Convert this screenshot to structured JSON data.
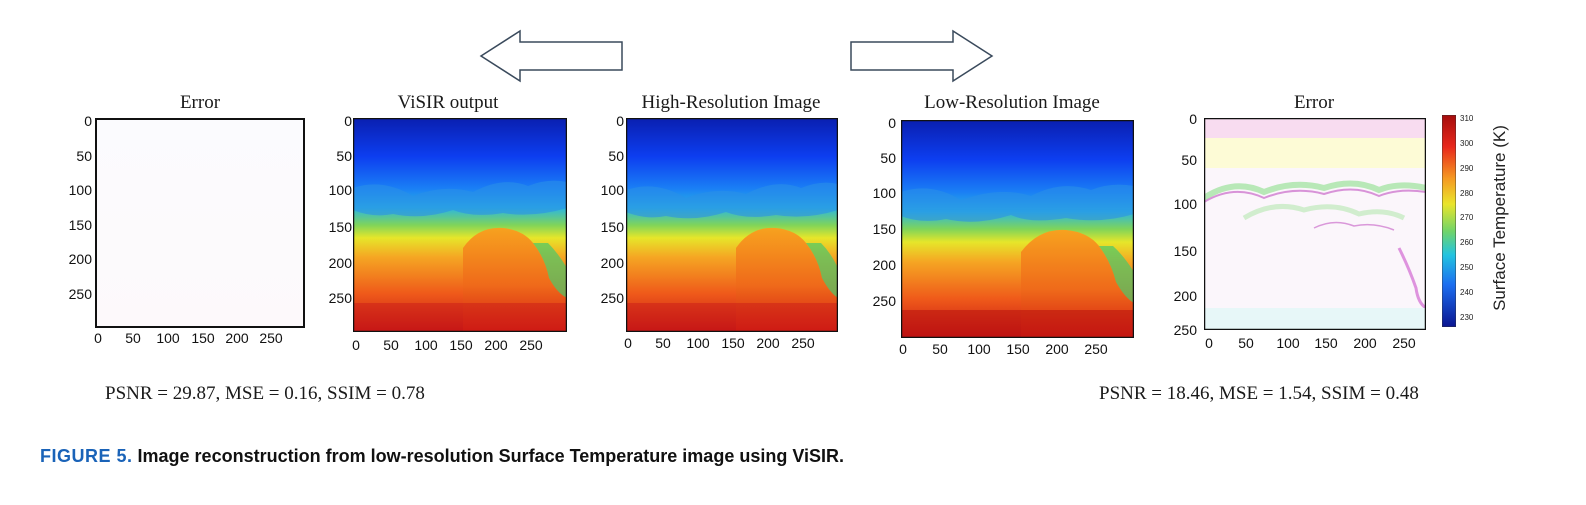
{
  "panels": [
    {
      "id": "error-left",
      "title": "Error",
      "y_ticks": [
        "0",
        "50",
        "100",
        "150",
        "200",
        "250"
      ],
      "x_ticks": [
        "0",
        "50",
        "100",
        "150",
        "200",
        "250"
      ]
    },
    {
      "id": "visir-output",
      "title": "ViSIR output",
      "y_ticks": [
        "0",
        "50",
        "100",
        "150",
        "200",
        "250"
      ],
      "x_ticks": [
        "0",
        "50",
        "100",
        "150",
        "200",
        "250"
      ]
    },
    {
      "id": "high-res",
      "title": "High-Resolution Image",
      "y_ticks": [
        "0",
        "50",
        "100",
        "150",
        "200",
        "250"
      ],
      "x_ticks": [
        "0",
        "50",
        "100",
        "150",
        "200",
        "250"
      ]
    },
    {
      "id": "low-res",
      "title": "Low-Resolution Image",
      "y_ticks": [
        "0",
        "50",
        "100",
        "150",
        "200",
        "250"
      ],
      "x_ticks": [
        "0",
        "50",
        "100",
        "150",
        "200",
        "250"
      ]
    },
    {
      "id": "error-right",
      "title": "Error",
      "y_ticks": [
        "0",
        "50",
        "100",
        "150",
        "200",
        "250"
      ],
      "x_ticks": [
        "0",
        "50",
        "100",
        "150",
        "200",
        "250"
      ]
    }
  ],
  "metrics": {
    "left": "PSNR = 29.87, MSE = 0.16, SSIM = 0.78",
    "right": "PSNR = 18.46, MSE = 1.54, SSIM = 0.48"
  },
  "colorbar": {
    "label": "Surface Temperature (K)",
    "ticks": [
      "310",
      "300",
      "290",
      "280",
      "270",
      "260",
      "250",
      "240",
      "230"
    ]
  },
  "caption": {
    "label": "FIGURE 5.",
    "text": "Image reconstruction from low-resolution Surface Temperature image using ViSIR."
  }
}
